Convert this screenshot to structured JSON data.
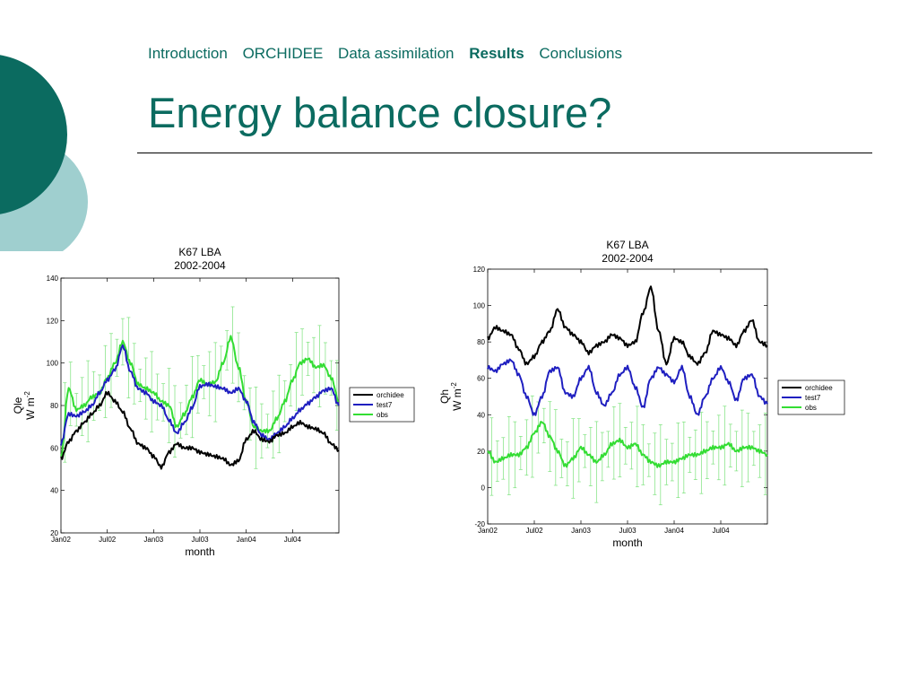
{
  "nav": {
    "items": [
      {
        "label": "Introduction",
        "active": false
      },
      {
        "label": "ORCHIDEE",
        "active": false
      },
      {
        "label": "Data assimilation",
        "active": false
      },
      {
        "label": "Results",
        "active": true
      },
      {
        "label": "Conclusions",
        "active": false
      }
    ]
  },
  "slide": {
    "title": "Energy balance closure?"
  },
  "theme": {
    "accent": "#0b6b60",
    "accent_light": "#9fcfcf"
  },
  "chart_data": [
    {
      "type": "line",
      "title": "K67 LBA",
      "subtitle": "2002-2004",
      "xlabel": "month",
      "ylabel": "Qle",
      "yunit_main": "W m",
      "yunit_sup": "-2",
      "xlim": [
        0,
        36
      ],
      "ylim": [
        20,
        140
      ],
      "xticks": [
        0,
        6,
        12,
        18,
        24,
        30
      ],
      "xtick_labels": [
        "Jan02",
        "Jul02",
        "Jan03",
        "Jul03",
        "Jan04",
        "Jul04"
      ],
      "yticks": [
        20,
        40,
        60,
        80,
        100,
        120,
        140
      ],
      "legend_position": "right",
      "series": [
        {
          "name": "orchidee",
          "color": "#000000",
          "x": [
            0,
            1,
            2,
            3,
            4,
            5,
            6,
            7,
            8,
            9,
            10,
            11,
            12,
            13,
            14,
            15,
            16,
            17,
            18,
            19,
            20,
            21,
            22,
            23,
            24,
            25,
            26,
            27,
            28,
            29,
            30,
            31,
            32,
            33,
            34,
            35,
            36
          ],
          "y": [
            55,
            63,
            68,
            72,
            76,
            80,
            86,
            82,
            77,
            69,
            62,
            60,
            56,
            51,
            58,
            62,
            60,
            60,
            58,
            57,
            56,
            55,
            52,
            54,
            64,
            68,
            64,
            63,
            66,
            67,
            70,
            72,
            70,
            69,
            67,
            62,
            59
          ]
        },
        {
          "name": "test7",
          "color": "#1f1fc0",
          "x": [
            0,
            1,
            2,
            3,
            4,
            5,
            6,
            7,
            8,
            9,
            10,
            11,
            12,
            13,
            14,
            15,
            16,
            17,
            18,
            19,
            20,
            21,
            22,
            23,
            24,
            25,
            26,
            27,
            28,
            29,
            30,
            31,
            32,
            33,
            34,
            35,
            36
          ],
          "y": [
            62,
            76,
            75,
            77,
            80,
            86,
            92,
            97,
            108,
            96,
            88,
            86,
            82,
            80,
            73,
            67,
            72,
            79,
            89,
            90,
            89,
            88,
            86,
            88,
            82,
            72,
            66,
            64,
            67,
            70,
            74,
            78,
            81,
            84,
            87,
            88,
            80
          ]
        },
        {
          "name": "obs",
          "color": "#33dd33",
          "x": [
            0,
            1,
            2,
            3,
            4,
            5,
            6,
            7,
            8,
            9,
            10,
            11,
            12,
            13,
            14,
            15,
            16,
            17,
            18,
            19,
            20,
            21,
            22,
            23,
            24,
            25,
            26,
            27,
            28,
            29,
            30,
            31,
            32,
            33,
            34,
            35,
            36
          ],
          "y": [
            56,
            88,
            78,
            80,
            84,
            86,
            93,
            100,
            110,
            100,
            90,
            88,
            86,
            82,
            80,
            70,
            76,
            84,
            92,
            90,
            91,
            100,
            112,
            98,
            82,
            70,
            68,
            68,
            74,
            82,
            92,
            100,
            102,
            98,
            99,
            93,
            82
          ]
        }
      ]
    },
    {
      "type": "line",
      "title": "K67 LBA",
      "subtitle": "2002-2004",
      "xlabel": "month",
      "ylabel": "Qh",
      "yunit_main": "W m",
      "yunit_sup": "-2",
      "xlim": [
        0,
        36
      ],
      "ylim": [
        -20,
        120
      ],
      "xticks": [
        0,
        6,
        12,
        18,
        24,
        30
      ],
      "xtick_labels": [
        "Jan02",
        "Jul02",
        "Jan03",
        "Jul03",
        "Jan04",
        "Jul04"
      ],
      "yticks": [
        -20,
        0,
        20,
        40,
        60,
        80,
        100,
        120
      ],
      "legend_position": "right",
      "series": [
        {
          "name": "orchidee",
          "color": "#000000",
          "x": [
            0,
            1,
            2,
            3,
            4,
            5,
            6,
            7,
            8,
            9,
            10,
            11,
            12,
            13,
            14,
            15,
            16,
            17,
            18,
            19,
            20,
            21,
            22,
            23,
            24,
            25,
            26,
            27,
            28,
            29,
            30,
            31,
            32,
            33,
            34,
            35,
            36
          ],
          "y": [
            82,
            88,
            86,
            84,
            76,
            68,
            72,
            80,
            86,
            98,
            88,
            84,
            80,
            74,
            78,
            80,
            84,
            82,
            78,
            80,
            96,
            110,
            86,
            68,
            82,
            80,
            72,
            68,
            74,
            86,
            84,
            82,
            78,
            86,
            92,
            80,
            78
          ]
        },
        {
          "name": "test7",
          "color": "#1f1fc0",
          "x": [
            0,
            1,
            2,
            3,
            4,
            5,
            6,
            7,
            8,
            9,
            10,
            11,
            12,
            13,
            14,
            15,
            16,
            17,
            18,
            19,
            20,
            21,
            22,
            23,
            24,
            25,
            26,
            27,
            28,
            29,
            30,
            31,
            32,
            33,
            34,
            35,
            36
          ],
          "y": [
            66,
            64,
            68,
            70,
            62,
            50,
            40,
            50,
            64,
            66,
            52,
            50,
            60,
            66,
            52,
            45,
            52,
            62,
            66,
            55,
            44,
            60,
            66,
            62,
            58,
            66,
            50,
            40,
            50,
            60,
            66,
            58,
            48,
            60,
            62,
            50,
            46
          ]
        },
        {
          "name": "obs",
          "color": "#33dd33",
          "x": [
            0,
            1,
            2,
            3,
            4,
            5,
            6,
            7,
            8,
            9,
            10,
            11,
            12,
            13,
            14,
            15,
            16,
            17,
            18,
            19,
            20,
            21,
            22,
            23,
            24,
            25,
            26,
            27,
            28,
            29,
            30,
            31,
            32,
            33,
            34,
            35,
            36
          ],
          "y": [
            20,
            14,
            16,
            18,
            18,
            22,
            30,
            36,
            28,
            20,
            12,
            16,
            22,
            18,
            14,
            18,
            24,
            26,
            22,
            24,
            18,
            14,
            12,
            14,
            14,
            16,
            18,
            18,
            20,
            22,
            22,
            24,
            20,
            22,
            22,
            20,
            18
          ]
        }
      ]
    }
  ]
}
